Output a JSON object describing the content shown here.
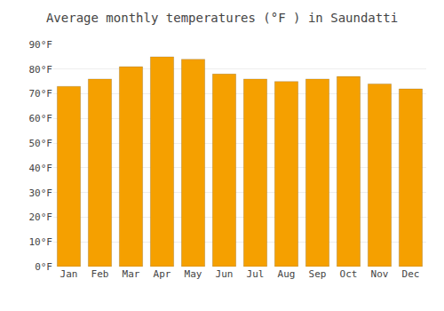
{
  "chart_data": {
    "type": "bar",
    "title": "Average monthly temperatures (°F ) in Saundatti",
    "categories": [
      "Jan",
      "Feb",
      "Mar",
      "Apr",
      "May",
      "Jun",
      "Jul",
      "Aug",
      "Sep",
      "Oct",
      "Nov",
      "Dec"
    ],
    "values": [
      73,
      76,
      81,
      85,
      84,
      78,
      76,
      75,
      76,
      77,
      74,
      72
    ],
    "color": "#F5A000",
    "ylim": [
      0,
      90
    ],
    "yticks": [
      {
        "value": 0,
        "label": "0°F"
      },
      {
        "value": 10,
        "label": "10°F"
      },
      {
        "value": 20,
        "label": "20°F"
      },
      {
        "value": 30,
        "label": "30°F"
      },
      {
        "value": 40,
        "label": "40°F"
      },
      {
        "value": 50,
        "label": "50°F"
      },
      {
        "value": 60,
        "label": "60°F"
      },
      {
        "value": 70,
        "label": "70°F"
      },
      {
        "value": 80,
        "label": "80°F"
      },
      {
        "value": 90,
        "label": "90°F"
      }
    ],
    "grid": true
  }
}
